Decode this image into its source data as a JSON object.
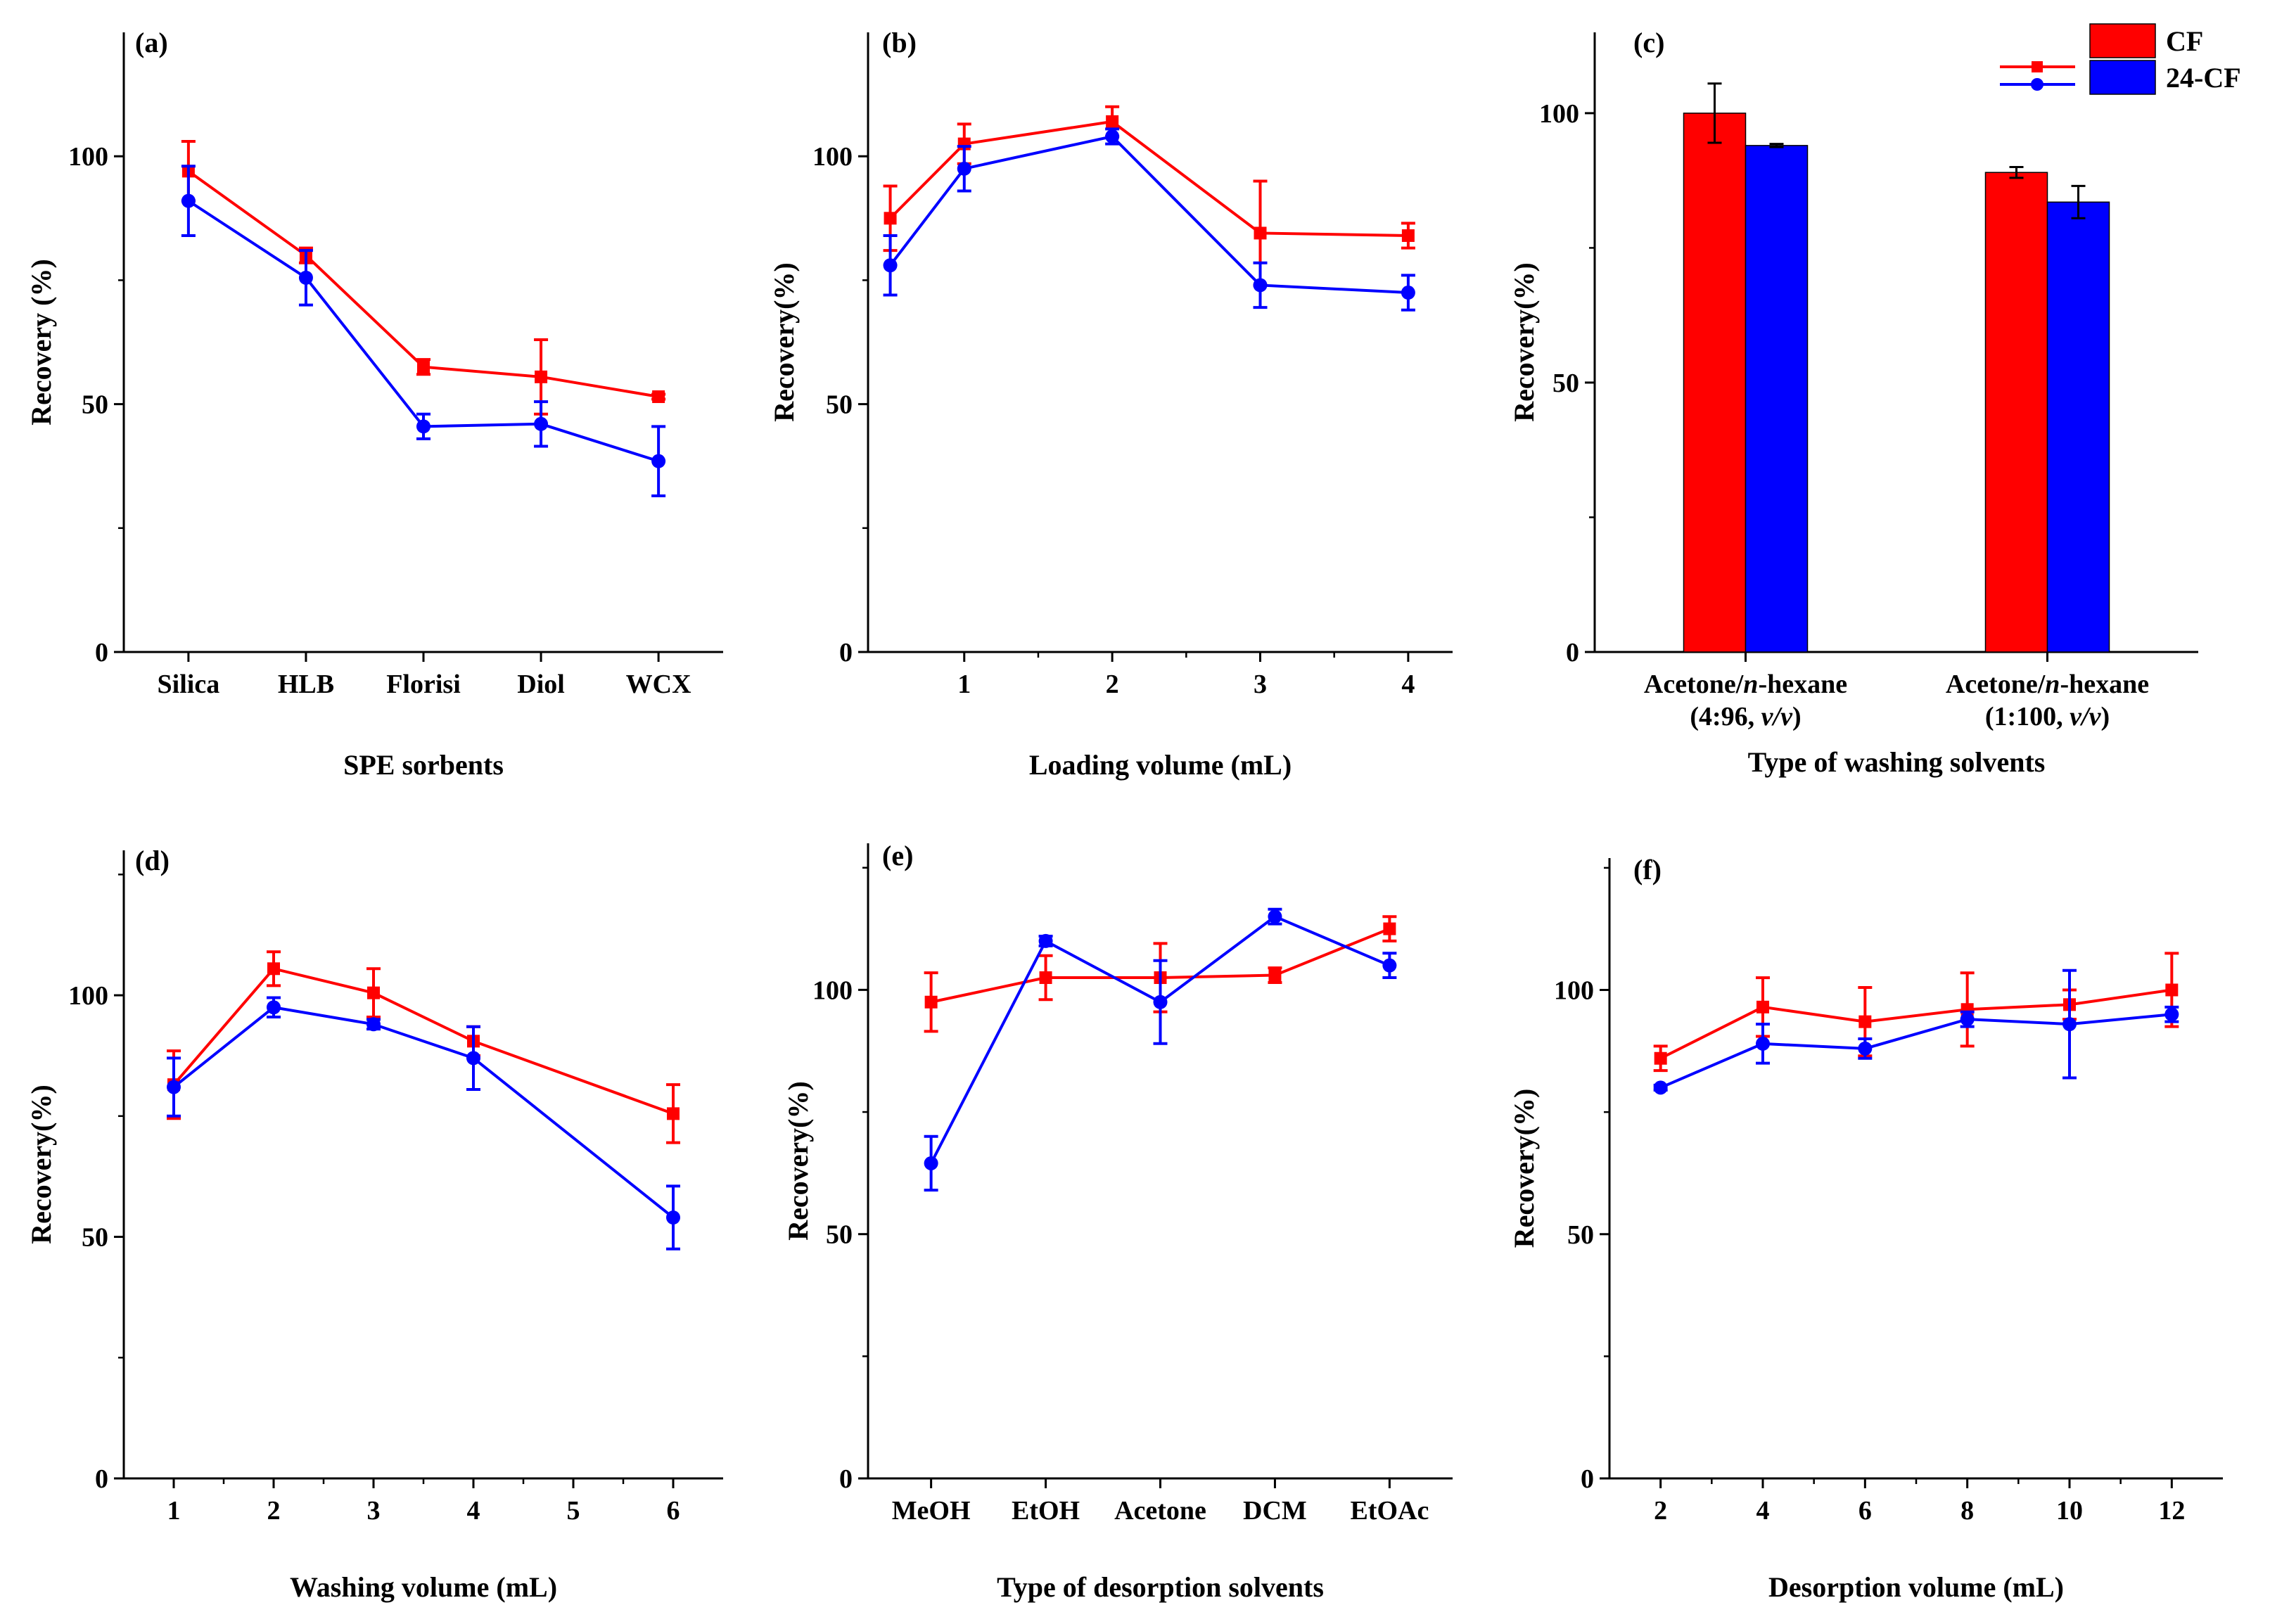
{
  "colors": {
    "CF": "#ff0000",
    "24-CF": "#0000ff",
    "axis": "#000000"
  },
  "legend": {
    "line_items": [
      {
        "series": "CF",
        "label": "CF"
      },
      {
        "series": "24-CF",
        "label": "24-CF"
      }
    ],
    "swatch_items": [
      {
        "series": "CF",
        "label": "CF"
      },
      {
        "series": "24-CF",
        "label": "24-CF"
      }
    ]
  },
  "chart_data": [
    {
      "id": "a",
      "panel_label": "(a)",
      "type": "line",
      "xlabel": "SPE sorbents",
      "ylabel": "Recovery (%)",
      "ylim": [
        0,
        125
      ],
      "yticks": [
        0,
        50,
        100
      ],
      "x_kind": "category",
      "categories": [
        "Silica",
        "HLB",
        "Florisi",
        "Diol",
        "WCX"
      ],
      "series": [
        {
          "name": "CF",
          "values": [
            97,
            80,
            57.5,
            55.5,
            51.5
          ],
          "errors": [
            6,
            1.5,
            1.5,
            7.5,
            0.5
          ]
        },
        {
          "name": "24-CF",
          "values": [
            91,
            75.5,
            45.5,
            46,
            38.5
          ],
          "errors": [
            7,
            5.5,
            2.5,
            4.5,
            7
          ]
        }
      ]
    },
    {
      "id": "b",
      "panel_label": "(b)",
      "type": "line",
      "xlabel": "Loading volume (mL)",
      "ylabel": "Recovery(%)",
      "ylim": [
        0,
        125
      ],
      "yticks": [
        0,
        50,
        100
      ],
      "x_kind": "numeric",
      "xlim": [
        0.35,
        4.3
      ],
      "xticks": [
        1,
        2,
        3,
        4
      ],
      "series": [
        {
          "name": "CF",
          "x": [
            0.5,
            1,
            2,
            3,
            4
          ],
          "values": [
            87.5,
            102.5,
            107,
            84.5,
            84
          ],
          "errors": [
            6.5,
            4,
            3,
            10.5,
            2.5
          ]
        },
        {
          "name": "24-CF",
          "x": [
            0.5,
            1,
            2,
            3,
            4
          ],
          "values": [
            78,
            97.5,
            104,
            74,
            72.5
          ],
          "errors": [
            6,
            4.5,
            1.5,
            4.5,
            3.5
          ]
        }
      ]
    },
    {
      "id": "c",
      "panel_label": "(c)",
      "type": "bar",
      "xlabel": "Type of washing solvents",
      "ylabel": "Recovery(%)",
      "ylim": [
        0,
        115
      ],
      "yticks": [
        0,
        50,
        100
      ],
      "x_kind": "category",
      "categories": [
        {
          "line1_pre": "Acetone/",
          "line1_italic": "n",
          "line1_post": "-hexane",
          "line2_pre": "(4:96, ",
          "line2_italic": "v/v",
          "line2_post": ")"
        },
        {
          "line1_pre": "Acetone/",
          "line1_italic": "n",
          "line1_post": "-hexane",
          "line2_pre": "(1:100, ",
          "line2_italic": "v/v",
          "line2_post": ")"
        }
      ],
      "series": [
        {
          "name": "CF",
          "values": [
            100,
            89
          ],
          "errors": [
            5.5,
            1
          ]
        },
        {
          "name": "24-CF",
          "values": [
            94,
            83.5
          ],
          "errors": [
            0.3,
            3
          ]
        }
      ]
    },
    {
      "id": "d",
      "panel_label": "(d)",
      "type": "line",
      "xlabel": "Washing volume (mL)",
      "ylabel": "Recovery(%)",
      "ylim": [
        0,
        130
      ],
      "yticks": [
        0,
        50,
        100
      ],
      "x_kind": "numeric",
      "xlim": [
        0.5,
        6.5
      ],
      "xticks": [
        1,
        2,
        3,
        4,
        5,
        6
      ],
      "series": [
        {
          "name": "CF",
          "x": [
            1,
            2,
            3,
            4,
            6
          ],
          "values": [
            81.5,
            105.5,
            100.5,
            90.5,
            75.5
          ],
          "errors": [
            7,
            3.5,
            5,
            3,
            6
          ]
        },
        {
          "name": "24-CF",
          "x": [
            1,
            2,
            3,
            4,
            6
          ],
          "values": [
            81,
            97.5,
            94,
            87,
            54
          ],
          "errors": [
            6,
            2,
            1,
            6.5,
            6.5
          ]
        }
      ]
    },
    {
      "id": "e",
      "panel_label": "(e)",
      "type": "line",
      "xlabel": "Type of desorption solvents",
      "ylabel": "Recovery(%)",
      "ylim": [
        0,
        130
      ],
      "yticks": [
        0,
        50,
        100
      ],
      "x_kind": "category",
      "categories": [
        "MeOH",
        "EtOH",
        "Acetone",
        "DCM",
        "EtOAc"
      ],
      "series": [
        {
          "name": "CF",
          "values": [
            97.5,
            102.5,
            102.5,
            103,
            112.5
          ],
          "errors": [
            6,
            4.5,
            7,
            1.5,
            2.5
          ]
        },
        {
          "name": "24-CF",
          "values": [
            64.5,
            110,
            97.5,
            115,
            105
          ],
          "errors": [
            5.5,
            1,
            8.5,
            1.5,
            2.5
          ]
        }
      ]
    },
    {
      "id": "f",
      "panel_label": "(f)",
      "type": "line",
      "xlabel": "Desorption volume (mL)",
      "ylabel": "Recovery(%)",
      "ylim": [
        0,
        127
      ],
      "yticks": [
        0,
        50,
        100
      ],
      "x_kind": "numeric",
      "xlim": [
        1,
        13
      ],
      "xticks": [
        2,
        4,
        6,
        8,
        10,
        12
      ],
      "series": [
        {
          "name": "CF",
          "x": [
            2,
            4,
            6,
            8,
            10,
            12
          ],
          "values": [
            86,
            96.5,
            93.5,
            96,
            97,
            100
          ],
          "errors": [
            2.5,
            6,
            7,
            7.5,
            3,
            7.5
          ]
        },
        {
          "name": "24-CF",
          "x": [
            2,
            4,
            6,
            8,
            10,
            12
          ],
          "values": [
            80,
            89,
            88,
            94,
            93,
            95
          ],
          "errors": [
            0.5,
            4,
            2,
            1.5,
            11,
            1.5
          ]
        }
      ]
    }
  ]
}
